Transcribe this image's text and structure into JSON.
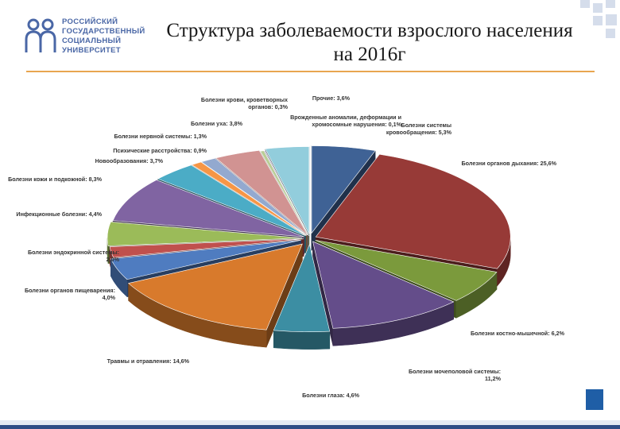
{
  "logo": {
    "lines": [
      "РОССИЙСКИЙ",
      "ГОСУДАРСТВЕННЫЙ",
      "СОЦИАЛЬНЫЙ",
      "УНИВЕРСИТЕТ"
    ]
  },
  "title": "Структура заболеваемости взрослого населения на 2016г",
  "colors": {
    "accent_line": "#e8a64f",
    "logo": "#4a67a6",
    "footer": "#2e4d86"
  },
  "chart_data": {
    "type": "pie",
    "style": "3d-exploded",
    "legend": "none",
    "slices": [
      {
        "label": "Болезни системы кровообращения",
        "value_text": "5,3%",
        "value": 5.3,
        "color": "#3f6295"
      },
      {
        "label": "Болезни органов дыхания",
        "value_text": "25,6%",
        "value": 25.6,
        "color": "#973a37"
      },
      {
        "label": "Болезни костно-мышечной",
        "value_text": "6,2%",
        "value": 6.2,
        "color": "#7b9a3c"
      },
      {
        "label": "Болезни мочеполовой системы",
        "value_text": "11,2%",
        "value": 11.2,
        "color": "#644d8a"
      },
      {
        "label": "Болезни глаза",
        "value_text": "4,6%",
        "value": 4.6,
        "color": "#3c8ea3"
      },
      {
        "label": "Травмы и отравления",
        "value_text": "14,6%",
        "value": 14.6,
        "color": "#d87a2c"
      },
      {
        "label": "Болезни органов пищеварения",
        "value_text": "4,0%",
        "value": 4.0,
        "color": "#4f7cc0"
      },
      {
        "label": "Болезни эндокринной системы",
        "value_text": "2,0%",
        "value": 2.0,
        "color": "#c0504d"
      },
      {
        "label": "Инфекционные болезни",
        "value_text": "4,4%",
        "value": 4.4,
        "color": "#9bbb59"
      },
      {
        "label": "Болезни кожи и подкожной",
        "value_text": "8,3%",
        "value": 8.3,
        "color": "#8064a2"
      },
      {
        "label": "Новообразования",
        "value_text": "3,7%",
        "value": 3.7,
        "color": "#4bacc6"
      },
      {
        "label": "Психические расстройства",
        "value_text": "0,9%",
        "value": 0.9,
        "color": "#f79646"
      },
      {
        "label": "Болезни нервной системы",
        "value_text": "1,3%",
        "value": 1.3,
        "color": "#93a9cf"
      },
      {
        "label": "Болезни уха",
        "value_text": "3,8%",
        "value": 3.8,
        "color": "#d19392"
      },
      {
        "label": "Болезни крови, кроветворных органов",
        "value_text": "0,3%",
        "value": 0.3,
        "color": "#b9cd96"
      },
      {
        "label": "Врожденные аномалии, деформации и хромосомные нарушения",
        "value_text": "0,1%",
        "value": 0.1,
        "color": "#a99bbd"
      },
      {
        "label": "Прочие",
        "value_text": "3,6%",
        "value": 3.6,
        "color": "#92cddc"
      }
    ]
  }
}
